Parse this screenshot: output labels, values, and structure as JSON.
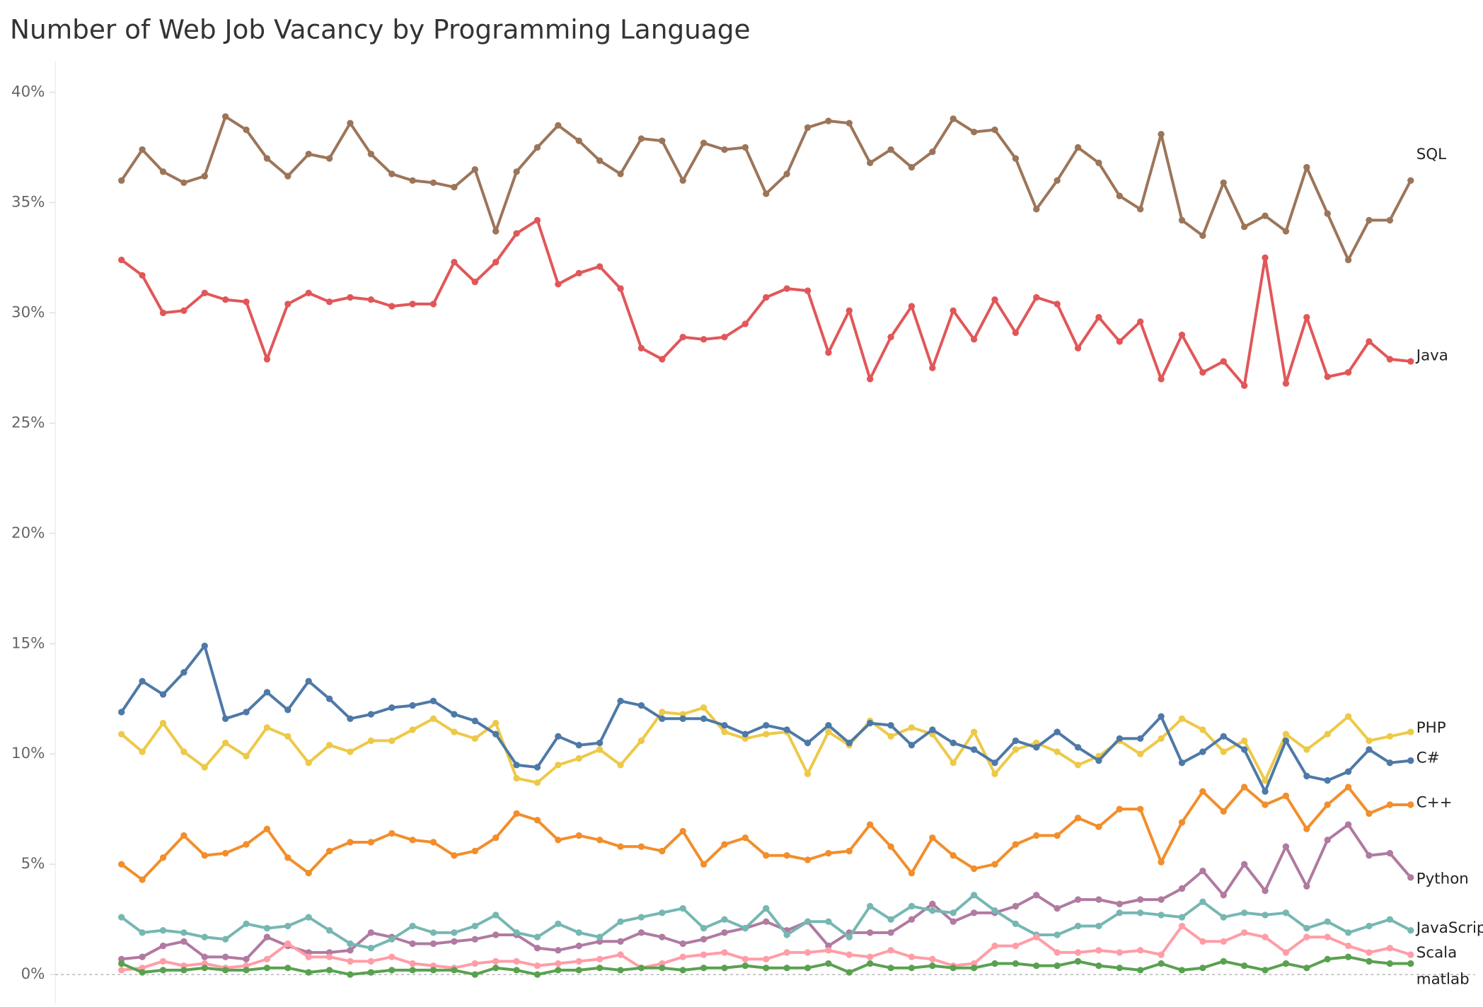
{
  "chart_data": {
    "type": "line",
    "title": "Number of Web Job Vacancy by Programming Language",
    "ylim": [
      -1.3,
      41.4
    ],
    "yticks": [
      {
        "value": 0,
        "label": "0%"
      },
      {
        "value": 5,
        "label": "5%"
      },
      {
        "value": 10,
        "label": "10%"
      },
      {
        "value": 15,
        "label": "15%"
      },
      {
        "value": 20,
        "label": "20%"
      },
      {
        "value": 25,
        "label": "25%"
      },
      {
        "value": 30,
        "label": "30%"
      },
      {
        "value": 35,
        "label": "35%"
      },
      {
        "value": 40,
        "label": "40%"
      }
    ],
    "grid": false,
    "zero_line": true,
    "series": [
      {
        "name": "SQL",
        "color": "#9c7559",
        "values": [
          36.0,
          37.4,
          36.4,
          35.9,
          36.2,
          38.9,
          38.3,
          37.0,
          36.2,
          37.2,
          37.0,
          38.6,
          37.2,
          36.3,
          36.0,
          35.9,
          35.7,
          36.5,
          33.7,
          36.4,
          37.5,
          38.5,
          37.8,
          36.9,
          36.3,
          37.9,
          37.8,
          36.0,
          37.7,
          37.4,
          37.5,
          35.4,
          36.3,
          38.4,
          38.7,
          38.6,
          36.8,
          37.4,
          36.6,
          37.3,
          38.8,
          38.2,
          38.3,
          37.0,
          34.7,
          36.0,
          37.5,
          36.8,
          35.3,
          34.7,
          38.1,
          34.2,
          33.5,
          35.9,
          33.9,
          34.4,
          33.7,
          36.6,
          34.5,
          32.4,
          34.2,
          34.2,
          36.0
        ]
      },
      {
        "name": "Java",
        "color": "#e15759",
        "values": [
          32.4,
          31.7,
          30.0,
          30.1,
          30.9,
          30.6,
          30.5,
          27.9,
          30.4,
          30.9,
          30.5,
          30.7,
          30.6,
          30.3,
          30.4,
          30.4,
          32.3,
          31.4,
          32.3,
          33.6,
          34.2,
          31.3,
          31.8,
          32.1,
          31.1,
          28.4,
          27.9,
          28.9,
          28.8,
          28.9,
          29.5,
          30.7,
          31.1,
          31.0,
          28.2,
          30.1,
          27.0,
          28.9,
          30.3,
          27.5,
          30.1,
          28.8,
          30.6,
          29.1,
          30.7,
          30.4,
          28.4,
          29.8,
          28.7,
          29.6,
          27.0,
          29.0,
          27.3,
          27.8,
          26.7,
          32.5,
          26.8,
          29.8,
          27.1,
          27.3,
          28.7,
          27.9,
          27.8
        ]
      },
      {
        "name": "PHP",
        "color": "#edc948",
        "values": [
          10.9,
          10.1,
          11.4,
          10.1,
          9.4,
          10.5,
          9.9,
          11.2,
          10.8,
          9.6,
          10.4,
          10.1,
          10.6,
          10.6,
          11.1,
          11.6,
          11.0,
          10.7,
          11.4,
          8.9,
          8.7,
          9.5,
          9.8,
          10.2,
          9.5,
          10.6,
          11.9,
          11.8,
          12.1,
          11.0,
          10.7,
          10.9,
          11.0,
          9.1,
          11.0,
          10.4,
          11.5,
          10.8,
          11.2,
          10.9,
          9.6,
          11.0,
          9.1,
          10.2,
          10.5,
          10.1,
          9.5,
          9.9,
          10.6,
          10.0,
          10.7,
          11.6,
          11.1,
          10.1,
          10.6,
          8.8,
          10.9,
          10.2,
          10.9,
          11.7,
          10.6,
          10.8,
          11.0
        ]
      },
      {
        "name": "C#",
        "color": "#4e79a7",
        "values": [
          11.9,
          13.3,
          12.7,
          13.7,
          14.9,
          11.6,
          11.9,
          12.8,
          12.0,
          13.3,
          12.5,
          11.6,
          11.8,
          12.1,
          12.2,
          12.4,
          11.8,
          11.5,
          10.9,
          9.5,
          9.4,
          10.8,
          10.4,
          10.5,
          12.4,
          12.2,
          11.6,
          11.6,
          11.6,
          11.3,
          10.9,
          11.3,
          11.1,
          10.5,
          11.3,
          10.5,
          11.4,
          11.3,
          10.4,
          11.1,
          10.5,
          10.2,
          9.6,
          10.6,
          10.3,
          11.0,
          10.3,
          9.7,
          10.7,
          10.7,
          11.7,
          9.6,
          10.1,
          10.8,
          10.2,
          8.3,
          10.6,
          9.0,
          8.8,
          9.2,
          10.2,
          9.6,
          9.7
        ]
      },
      {
        "name": "C++",
        "color": "#f28e2b",
        "values": [
          5.0,
          4.3,
          5.3,
          6.3,
          5.4,
          5.5,
          5.9,
          6.6,
          5.3,
          4.6,
          5.6,
          6.0,
          6.0,
          6.4,
          6.1,
          6.0,
          5.4,
          5.6,
          6.2,
          7.3,
          7.0,
          6.1,
          6.3,
          6.1,
          5.8,
          5.8,
          5.6,
          6.5,
          5.0,
          5.9,
          6.2,
          5.4,
          5.4,
          5.2,
          5.5,
          5.6,
          6.8,
          5.8,
          4.6,
          6.2,
          5.4,
          4.8,
          5.0,
          5.9,
          6.3,
          6.3,
          7.1,
          6.7,
          7.5,
          7.5,
          5.1,
          6.9,
          8.3,
          7.4,
          8.5,
          7.7,
          8.1,
          6.6,
          7.7,
          8.5,
          7.3,
          7.7,
          7.7
        ]
      },
      {
        "name": "Python",
        "color": "#b07aa1",
        "values": [
          0.7,
          0.8,
          1.3,
          1.5,
          0.8,
          0.8,
          0.7,
          1.7,
          1.3,
          1.0,
          1.0,
          1.1,
          1.9,
          1.7,
          1.4,
          1.4,
          1.5,
          1.6,
          1.8,
          1.8,
          1.2,
          1.1,
          1.3,
          1.5,
          1.5,
          1.9,
          1.7,
          1.4,
          1.6,
          1.9,
          2.1,
          2.4,
          2.0,
          2.4,
          1.3,
          1.9,
          1.9,
          1.9,
          2.5,
          3.2,
          2.4,
          2.8,
          2.8,
          3.1,
          3.6,
          3.0,
          3.4,
          3.4,
          3.2,
          3.4,
          3.4,
          3.9,
          4.7,
          3.6,
          5.0,
          3.8,
          5.8,
          4.0,
          6.1,
          6.8,
          5.4,
          5.5,
          4.4
        ]
      },
      {
        "name": "JavaScript",
        "color": "#76b7b2",
        "values": [
          2.6,
          1.9,
          2.0,
          1.9,
          1.7,
          1.6,
          2.3,
          2.1,
          2.2,
          2.6,
          2.0,
          1.4,
          1.2,
          1.6,
          2.2,
          1.9,
          1.9,
          2.2,
          2.7,
          1.9,
          1.7,
          2.3,
          1.9,
          1.7,
          2.4,
          2.6,
          2.8,
          3.0,
          2.1,
          2.5,
          2.1,
          3.0,
          1.8,
          2.4,
          2.4,
          1.7,
          3.1,
          2.5,
          3.1,
          2.9,
          2.8,
          3.6,
          2.9,
          2.3,
          1.8,
          1.8,
          2.2,
          2.2,
          2.8,
          2.8,
          2.7,
          2.6,
          3.3,
          2.6,
          2.8,
          2.7,
          2.8,
          2.1,
          2.4,
          1.9,
          2.2,
          2.5,
          2.0
        ]
      },
      {
        "name": "Scala",
        "color": "#ff9da7",
        "values": [
          0.2,
          0.3,
          0.6,
          0.4,
          0.5,
          0.3,
          0.4,
          0.7,
          1.4,
          0.8,
          0.8,
          0.6,
          0.6,
          0.8,
          0.5,
          0.4,
          0.3,
          0.5,
          0.6,
          0.6,
          0.4,
          0.5,
          0.6,
          0.7,
          0.9,
          0.3,
          0.5,
          0.8,
          0.9,
          1.0,
          0.7,
          0.7,
          1.0,
          1.0,
          1.1,
          0.9,
          0.8,
          1.1,
          0.8,
          0.7,
          0.4,
          0.5,
          1.3,
          1.3,
          1.7,
          1.0,
          1.0,
          1.1,
          1.0,
          1.1,
          0.9,
          2.2,
          1.5,
          1.5,
          1.9,
          1.7,
          1.0,
          1.7,
          1.7,
          1.3,
          1.0,
          1.2,
          0.9
        ]
      },
      {
        "name": "matlab",
        "color": "#59a14f",
        "values": [
          0.5,
          0.1,
          0.2,
          0.2,
          0.3,
          0.2,
          0.2,
          0.3,
          0.3,
          0.1,
          0.2,
          0.0,
          0.1,
          0.2,
          0.2,
          0.2,
          0.2,
          0.0,
          0.3,
          0.2,
          0.0,
          0.2,
          0.2,
          0.3,
          0.2,
          0.3,
          0.3,
          0.2,
          0.3,
          0.3,
          0.4,
          0.3,
          0.3,
          0.3,
          0.5,
          0.1,
          0.5,
          0.3,
          0.3,
          0.4,
          0.3,
          0.3,
          0.5,
          0.5,
          0.4,
          0.4,
          0.6,
          0.4,
          0.3,
          0.2,
          0.5,
          0.2,
          0.3,
          0.6,
          0.4,
          0.2,
          0.5,
          0.3,
          0.7,
          0.8,
          0.6,
          0.5,
          0.5
        ]
      }
    ]
  }
}
